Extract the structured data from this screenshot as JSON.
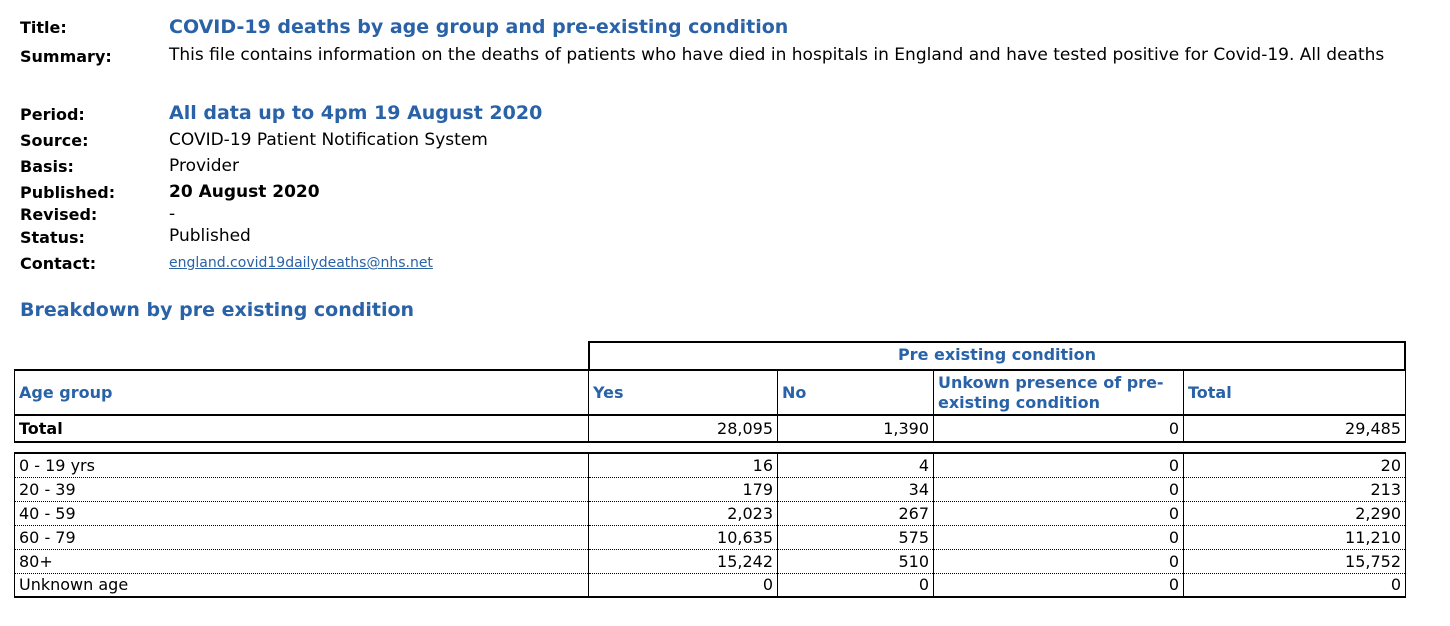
{
  "meta": {
    "title_label": "Title:",
    "title_value": "COVID-19 deaths by age group and pre-existing condition",
    "summary_label": "Summary:",
    "summary_value": "This file contains information on the deaths of patients who have died in hospitals in England and have tested positive for Covid-19. All deaths",
    "period_label": "Period:",
    "period_value": "All data up to 4pm 19 August 2020",
    "source_label": "Source:",
    "source_value": "COVID-19 Patient Notification System",
    "basis_label": "Basis:",
    "basis_value": "Provider",
    "published_label": "Published:",
    "published_value": "20 August 2020",
    "revised_label": "Revised:",
    "revised_value": "-",
    "status_label": "Status:",
    "status_value": "Published",
    "contact_label": "Contact:",
    "contact_value": "england.covid19dailydeaths@nhs.net"
  },
  "section_heading": "Breakdown by pre existing condition",
  "table": {
    "group_header": "Pre existing condition",
    "columns": [
      "Age group",
      "Yes",
      "No",
      "Unkown presence of pre-existing condition",
      "Total"
    ],
    "total_row": [
      "Total",
      "28,095",
      "1,390",
      "0",
      "29,485"
    ],
    "rows": [
      [
        "0 - 19 yrs",
        "16",
        "4",
        "0",
        "20"
      ],
      [
        "20 - 39",
        "179",
        "34",
        "0",
        "213"
      ],
      [
        "40 - 59",
        "2,023",
        "267",
        "0",
        "2,290"
      ],
      [
        "60 - 79",
        "10,635",
        "575",
        "0",
        "11,210"
      ],
      [
        "80+",
        "15,242",
        "510",
        "0",
        "15,752"
      ],
      [
        "Unknown age",
        "0",
        "0",
        "0",
        "0"
      ]
    ]
  }
}
